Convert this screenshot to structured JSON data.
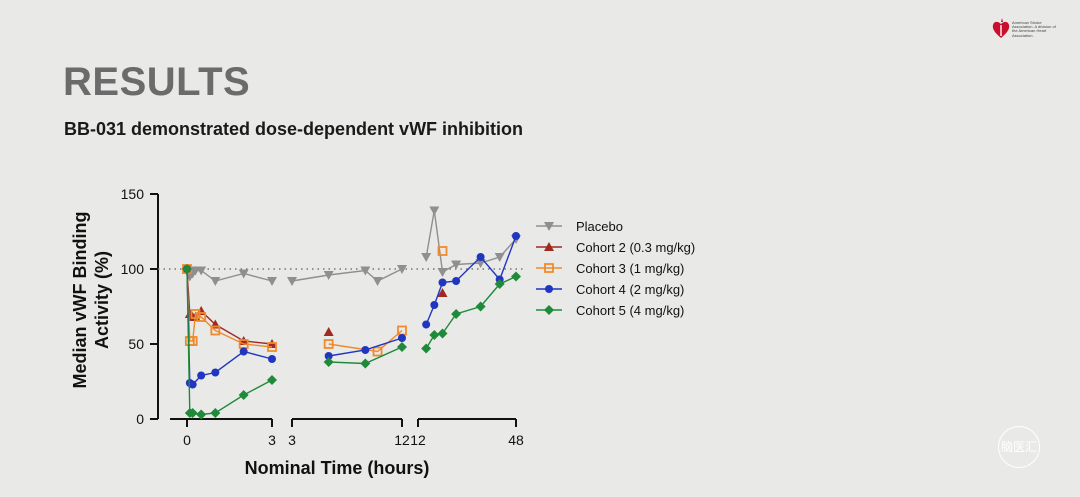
{
  "slide": {
    "title": "RESULTS",
    "subtitle": "BB-031 demonstrated dose-dependent vWF inhibition",
    "logo_text": "American Stroke Association. A division of the American Heart Association.",
    "watermark": "脑医汇"
  },
  "colors": {
    "placebo": "#8f8f8f",
    "cohort2": "#9e2a22",
    "cohort3": "#f08a2c",
    "cohort4": "#2036c2",
    "cohort5": "#1f8a3a",
    "axis": "#111111",
    "title_gray": "#6b6b6b"
  },
  "chart_data": {
    "type": "line",
    "xlabel": "Nominal Time (hours)",
    "ylabel_lines": [
      "Median vWF Binding",
      "Activity (%)"
    ],
    "ylim": [
      0,
      150
    ],
    "yticks": [
      "0",
      "50",
      "100",
      "150"
    ],
    "reference_line": 100,
    "grid": false,
    "legend_position": "right",
    "segments": [
      {
        "xlim": [
          -0.6,
          3
        ],
        "xticks": [
          "0",
          "3"
        ]
      },
      {
        "xlim": [
          3,
          12
        ],
        "xticks": [
          "3",
          "12"
        ]
      },
      {
        "xlim": [
          12,
          48
        ],
        "xticks": [
          "12",
          "48"
        ]
      }
    ],
    "series": [
      {
        "name": "Placebo",
        "marker": "triangle-down",
        "color_key": "placebo",
        "segments": [
          [
            [
              0,
              100
            ],
            [
              0.1,
              95
            ],
            [
              0.2,
              97
            ],
            [
              0.3,
              99
            ],
            [
              0.5,
              99
            ],
            [
              1,
              92
            ],
            [
              2,
              97
            ],
            [
              3,
              92
            ]
          ],
          [
            [
              3,
              92
            ],
            [
              6,
              96
            ],
            [
              9,
              99
            ],
            [
              10,
              92
            ],
            [
              12,
              100
            ]
          ],
          [
            [
              15,
              108
            ],
            [
              18,
              139
            ],
            [
              21,
              98
            ],
            [
              26,
              103
            ],
            [
              35,
              104
            ],
            [
              42,
              108
            ],
            [
              48,
              120
            ]
          ]
        ]
      },
      {
        "name": "Cohort 2 (0.3 mg/kg)",
        "marker": "triangle-up",
        "color_key": "cohort2",
        "segments": [
          [
            [
              0,
              100
            ],
            [
              0.1,
              70
            ],
            [
              0.2,
              68
            ],
            [
              0.3,
              68
            ],
            [
              0.5,
              72
            ],
            [
              1,
              63
            ],
            [
              2,
              52
            ],
            [
              3,
              50
            ]
          ],
          [
            [
              6,
              58
            ]
          ],
          [
            [
              21,
              84
            ]
          ]
        ]
      },
      {
        "name": "Cohort 3 (1 mg/kg)",
        "marker": "square-open",
        "color_key": "cohort3",
        "segments": [
          [
            [
              0,
              100
            ],
            [
              0.1,
              52
            ],
            [
              0.2,
              52
            ],
            [
              0.3,
              70
            ],
            [
              0.5,
              68
            ],
            [
              1,
              59
            ],
            [
              2,
              50
            ],
            [
              3,
              48
            ]
          ],
          [
            [
              6,
              50
            ],
            [
              10,
              45
            ],
            [
              12,
              59
            ]
          ],
          [
            [
              21,
              112
            ]
          ]
        ]
      },
      {
        "name": "Cohort 4 (2 mg/kg)",
        "marker": "circle",
        "color_key": "cohort4",
        "segments": [
          [
            [
              0,
              100
            ],
            [
              0.1,
              24
            ],
            [
              0.2,
              23
            ],
            [
              0.5,
              29
            ],
            [
              1,
              31
            ],
            [
              2,
              45
            ],
            [
              3,
              40
            ]
          ],
          [
            [
              6,
              42
            ],
            [
              9,
              46
            ],
            [
              12,
              54
            ]
          ],
          [
            [
              15,
              63
            ],
            [
              18,
              76
            ],
            [
              21,
              91
            ],
            [
              26,
              92
            ],
            [
              35,
              108
            ],
            [
              42,
              93
            ],
            [
              48,
              122
            ]
          ]
        ]
      },
      {
        "name": "Cohort 5 (4 mg/kg)",
        "marker": "diamond",
        "color_key": "cohort5",
        "segments": [
          [
            [
              0,
              100
            ],
            [
              0.1,
              4
            ],
            [
              0.2,
              4
            ],
            [
              0.5,
              3
            ],
            [
              1,
              4
            ],
            [
              2,
              16
            ],
            [
              3,
              26
            ]
          ],
          [
            [
              6,
              38
            ],
            [
              9,
              37
            ],
            [
              12,
              48
            ]
          ],
          [
            [
              15,
              47
            ],
            [
              18,
              56
            ],
            [
              21,
              57
            ],
            [
              26,
              70
            ],
            [
              35,
              75
            ],
            [
              42,
              90
            ],
            [
              48,
              95
            ]
          ]
        ]
      }
    ]
  }
}
